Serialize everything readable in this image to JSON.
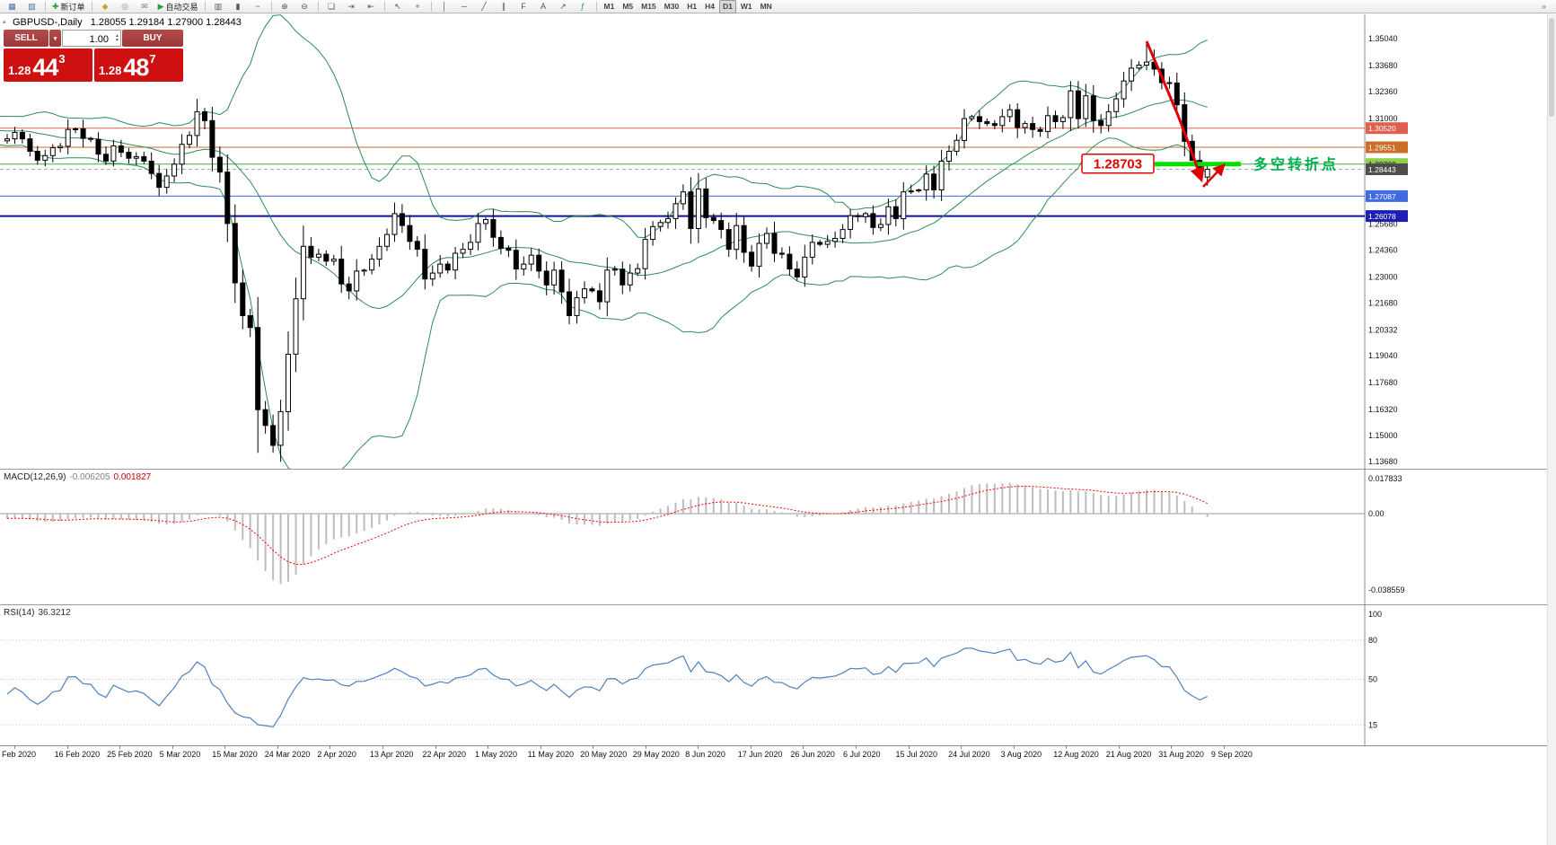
{
  "toolbar": {
    "buttons": [
      {
        "name": "new-chart-icon",
        "glyph": "▦",
        "color": "#4a6fa5"
      },
      {
        "name": "chart-profiles-icon",
        "glyph": "▧",
        "color": "#4a6fa5"
      },
      {
        "type": "sep"
      },
      {
        "name": "new-order-button",
        "glyph": "✚",
        "glyph_color": "#1fa038",
        "label": "新订单"
      },
      {
        "type": "sep"
      },
      {
        "name": "mql5-community-icon",
        "glyph": "◆",
        "color": "#cfa023"
      },
      {
        "name": "alerts-icon",
        "glyph": "◎",
        "color": "#888888"
      },
      {
        "name": "mailbox-icon",
        "glyph": "✉",
        "color": "#777777"
      },
      {
        "name": "autotrading-button",
        "glyph": "▶",
        "glyph_color": "#1fa038",
        "label": "自动交易"
      },
      {
        "type": "sep"
      },
      {
        "name": "bar-chart-icon",
        "glyph": "▥",
        "color": "#555555"
      },
      {
        "name": "candlestick-chart-icon",
        "glyph": "▮",
        "color": "#555555"
      },
      {
        "name": "line-chart-icon",
        "glyph": "~",
        "color": "#555555"
      },
      {
        "type": "sep"
      },
      {
        "name": "zoom-in-icon",
        "glyph": "⊕",
        "color": "#555555"
      },
      {
        "name": "zoom-out-icon",
        "glyph": "⊖",
        "color": "#555555"
      },
      {
        "type": "sep"
      },
      {
        "name": "tile-windows-icon",
        "glyph": "❏",
        "color": "#555555"
      },
      {
        "name": "auto-scroll-icon",
        "glyph": "⇥",
        "color": "#555555"
      },
      {
        "name": "chart-shift-icon",
        "glyph": "⇤",
        "color": "#555555"
      },
      {
        "type": "sep"
      },
      {
        "name": "cursor-icon",
        "glyph": "↖",
        "color": "#555555"
      },
      {
        "name": "crosshair-icon",
        "glyph": "+",
        "color": "#555555"
      },
      {
        "type": "sep"
      },
      {
        "name": "vertical-line-icon",
        "glyph": "│",
        "color": "#555555"
      },
      {
        "name": "horizontal-line-icon",
        "glyph": "─",
        "color": "#555555"
      },
      {
        "name": "trendline-icon",
        "glyph": "╱",
        "color": "#555555"
      },
      {
        "name": "equidistant-channel-icon",
        "glyph": "∥",
        "color": "#555555"
      },
      {
        "name": "fibonacci-icon",
        "glyph": "F",
        "color": "#555555"
      },
      {
        "name": "text-label-icon",
        "glyph": "A",
        "color": "#555555"
      },
      {
        "name": "arrows-icon",
        "glyph": "↗",
        "color": "#555555"
      },
      {
        "name": "indicators-icon",
        "glyph": "ƒ",
        "color": "#1fa038"
      },
      {
        "type": "sep"
      },
      {
        "type": "timeframes"
      },
      {
        "name": "toolbar-overflow-icon",
        "glyph": "»",
        "color": "#777777",
        "right": true
      }
    ],
    "timeframes": [
      "M1",
      "M5",
      "M15",
      "M30",
      "H1",
      "H4",
      "D1",
      "W1",
      "MN"
    ],
    "active_timeframe": "D1"
  },
  "chart": {
    "symbol": "GBPUSD-,Daily",
    "ohlc_line": "1.28055 1.29184 1.27900 1.28443"
  },
  "trade_panel": {
    "sell_label": "SELL",
    "buy_label": "BUY",
    "volume": "1.00",
    "sell_price": {
      "prefix": "1.28",
      "big": "44",
      "sup": "3"
    },
    "buy_price": {
      "prefix": "1.28",
      "big": "48",
      "sup": "7"
    }
  },
  "macd": {
    "name": "MACD(12,26,9)",
    "value_main": "-0.006205",
    "value_signal": "0.001827",
    "axis": [
      {
        "label": "0.017833",
        "value": 0.017833
      },
      {
        "label": "0.00",
        "value": 0
      },
      {
        "label": "-0.038559",
        "value": -0.038559
      }
    ]
  },
  "rsi": {
    "name": "RSI(14)",
    "value": "36.3212",
    "axis": [
      {
        "label": "100",
        "value": 100,
        "line": false
      },
      {
        "label": "80",
        "value": 80,
        "line": true
      },
      {
        "label": "50",
        "value": 50,
        "line": true
      },
      {
        "label": "15",
        "value": 15,
        "line": true
      }
    ]
  },
  "colors": {
    "bull_candle": "#ffffff",
    "bear_candle": "#000000",
    "candle_outline": "#000000",
    "bollinger": "#2e8b57",
    "macd_histogram": "#bdbdbd",
    "macd_signal": "#ff0000",
    "rsi_line": "#4f81bd",
    "panel_button_red": "#b34a4a",
    "price_block_red": "#cf1010"
  },
  "chart_data": {
    "type": "candlestick",
    "symbol": "GBPUSD",
    "timeframe": "Daily",
    "ylim": [
      1.1368,
      1.358
    ],
    "price_ticks": [
      "1.35040",
      "1.33680",
      "1.32360",
      "1.31000",
      "1.25680",
      "1.24360",
      "1.23000",
      "1.21680",
      "1.20332",
      "1.19040",
      "1.17680",
      "1.16320",
      "1.15000",
      "1.13680"
    ],
    "date_labels": [
      "Feb 2020",
      "16 Feb 2020",
      "25 Feb 2020",
      "5 Mar 2020",
      "15 Mar 2020",
      "24 Mar 2020",
      "2 Apr 2020",
      "13 Apr 2020",
      "22 Apr 2020",
      "1 May 2020",
      "11 May 2020",
      "20 May 2020",
      "29 May 2020",
      "8 Jun 2020",
      "17 Jun 2020",
      "26 Jun 2020",
      "6 Jul 2020",
      "15 Jul 2020",
      "24 Jul 2020",
      "3 Aug 2020",
      "12 Aug 2020",
      "21 Aug 2020",
      "31 Aug 2020",
      "9 Sep 2020"
    ],
    "warmup": [
      1.3165,
      1.312,
      1.308,
      1.3105,
      1.3128,
      1.3062,
      1.3048,
      1.3015,
      1.299,
      1.301,
      1.3065,
      1.304,
      1.3095,
      1.311,
      1.3085,
      1.3055,
      1.3022,
      1.3008,
      1.2985,
      1.302,
      1.3055,
      1.3082,
      1.3068,
      1.304,
      1.3012,
      1.2988
    ],
    "closes": [
      1.2998,
      1.303,
      1.2998,
      1.2935,
      1.289,
      1.2913,
      1.2953,
      1.296,
      1.3045,
      1.3048,
      1.3,
      1.2995,
      1.292,
      1.2886,
      1.2962,
      1.293,
      1.29,
      1.2908,
      1.2885,
      1.2823,
      1.2753,
      1.281,
      1.287,
      1.297,
      1.3015,
      1.3135,
      1.309,
      1.2905,
      1.283,
      1.257,
      1.227,
      1.2105,
      1.2045,
      1.163,
      1.155,
      1.145,
      1.162,
      1.191,
      1.219,
      1.2455,
      1.24,
      1.2415,
      1.238,
      1.239,
      1.2265,
      1.223,
      1.233,
      1.2335,
      1.239,
      1.2455,
      1.2515,
      1.262,
      1.256,
      1.248,
      1.244,
      1.229,
      1.232,
      1.2365,
      1.2335,
      1.242,
      1.244,
      1.2475,
      1.257,
      1.259,
      1.25,
      1.2445,
      1.2435,
      1.234,
      1.2365,
      1.241,
      1.233,
      1.226,
      1.2335,
      1.2225,
      1.2105,
      1.2195,
      1.224,
      1.223,
      1.2175,
      1.2335,
      1.234,
      1.226,
      1.232,
      1.2342,
      1.249,
      1.2555,
      1.2575,
      1.2595,
      1.267,
      1.273,
      1.2545,
      1.2745,
      1.26,
      1.2585,
      1.254,
      1.244,
      1.256,
      1.2425,
      1.2355,
      1.247,
      1.252,
      1.242,
      1.2415,
      1.234,
      1.23,
      1.24,
      1.2475,
      1.2465,
      1.248,
      1.2495,
      1.254,
      1.261,
      1.2605,
      1.262,
      1.255,
      1.2565,
      1.2655,
      1.2595,
      1.273,
      1.2735,
      1.274,
      1.282,
      1.274,
      1.2885,
      1.2935,
      1.299,
      1.31,
      1.311,
      1.3085,
      1.3075,
      1.3065,
      1.311,
      1.3145,
      1.3055,
      1.3075,
      1.3045,
      1.3035,
      1.3115,
      1.3085,
      1.3105,
      1.324,
      1.31,
      1.3215,
      1.309,
      1.3065,
      1.3135,
      1.32,
      1.329,
      1.3355,
      1.337,
      1.3385,
      1.335,
      1.3282,
      1.328,
      1.317,
      1.2985,
      1.2889,
      1.2805,
      1.28443
    ],
    "wick_overrides": {
      "25": {
        "high": 1.32
      },
      "33": {
        "low": 1.1412
      },
      "35": {
        "low": 1.1412
      },
      "150": {
        "high": 1.3482
      },
      "151": {
        "high": 1.3448
      },
      "156": {
        "low": 1.2885
      },
      "157": {
        "low": 1.28
      },
      "158": {
        "low": 1.2762
      }
    },
    "bollinger": {
      "period": 20,
      "deviation": 2
    },
    "levels": [
      {
        "label": "1.30520",
        "price": 1.3052,
        "color": "#e0604f",
        "badge_bg": "#e0604f",
        "badge_fg": "#ffffff",
        "width": 1,
        "dash": ""
      },
      {
        "label": "1.29551",
        "price": 1.29551,
        "color": "#cc6e28",
        "badge_bg": "#cc6e28",
        "badge_fg": "#ffffff",
        "width": 1,
        "dash": ""
      },
      {
        "label": "1.28703",
        "price": 1.28703,
        "color": "#3cb043",
        "badge_bg": "#8fd14f",
        "badge_fg": "#1a1a1a",
        "width": 1,
        "dash": ""
      },
      {
        "label": "1.28443",
        "price": 1.28443,
        "color": "#aaaaaa",
        "badge_bg": "#4d4d4d",
        "badge_fg": "#ffffff",
        "width": 1,
        "dash": "4,3"
      },
      {
        "label": "1.27087",
        "price": 1.27087,
        "color": "#4169e1",
        "badge_bg": "#4169e1",
        "badge_fg": "#ffffff",
        "width": 1,
        "dash": ""
      },
      {
        "label": "1.26078",
        "price": 1.26078,
        "color": "#10129e",
        "badge_bg": "#1d1fb4",
        "badge_fg": "#ffffff",
        "width": 2,
        "dash": ""
      }
    ],
    "annotation": {
      "price_label": "1.28703",
      "price_label_color": "#e10000",
      "note_label": "多空转折点",
      "note_color": "#00b050",
      "bar_color": "#00e000",
      "arrow_color": "#e10000"
    }
  }
}
